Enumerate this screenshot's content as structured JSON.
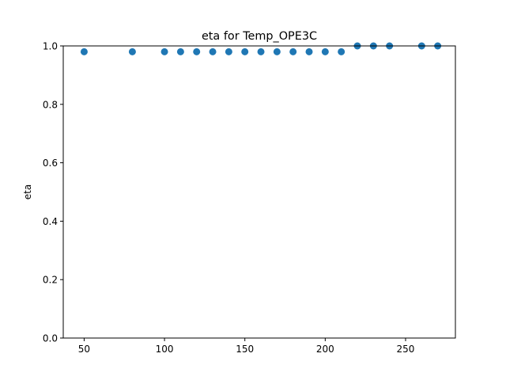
{
  "chart_data": {
    "type": "scatter",
    "title": "eta for Temp_OPE3C",
    "xlabel": "",
    "ylabel": "eta",
    "xlim": [
      37,
      281
    ],
    "ylim": [
      0.0,
      1.0
    ],
    "xticks": [
      50,
      100,
      150,
      200,
      250
    ],
    "yticks": [
      0.0,
      0.2,
      0.4,
      0.6,
      0.8,
      1.0
    ],
    "xtick_labels": [
      "50",
      "100",
      "150",
      "200",
      "250"
    ],
    "ytick_labels": [
      "0.0",
      "0.2",
      "0.4",
      "0.6",
      "0.8",
      "1.0"
    ],
    "grid": false,
    "marker_color": "#1f77b4",
    "series": [
      {
        "x": [
          50,
          80,
          100,
          110,
          120,
          130,
          140,
          150,
          160,
          170,
          180,
          190,
          200,
          210,
          220,
          230,
          240,
          260,
          270
        ],
        "y": [
          0.98,
          0.98,
          0.98,
          0.98,
          0.98,
          0.98,
          0.98,
          0.98,
          0.98,
          0.98,
          0.98,
          0.98,
          0.98,
          0.98,
          1.0,
          1.0,
          1.0,
          1.0,
          1.0
        ]
      }
    ]
  }
}
